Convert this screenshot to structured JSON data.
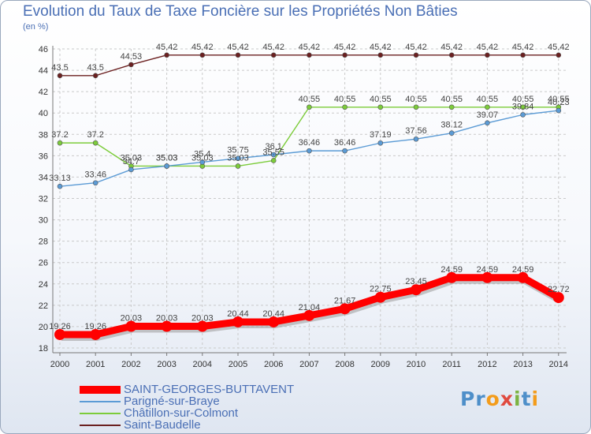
{
  "title": "Evolution du Taux de Taxe Foncière sur les Propriétés Non Bâties",
  "unit_label": "(en %)",
  "logo_text": "Proxiti",
  "chart_data": {
    "type": "line",
    "title": "Evolution du Taux de Taxe Foncière sur les Propriétés Non Bâties",
    "ylabel": "(en %)",
    "x": [
      "2000",
      "2001",
      "2002",
      "2003",
      "2004",
      "2005",
      "2006",
      "2007",
      "2008",
      "2009",
      "2010",
      "2011",
      "2012",
      "2013",
      "2014"
    ],
    "ylim": [
      18,
      46
    ],
    "yticks": [
      18,
      20,
      22,
      24,
      26,
      28,
      30,
      32,
      34,
      36,
      38,
      40,
      42,
      44,
      46
    ],
    "grid": true,
    "legend_position": "bottom-left",
    "series": [
      {
        "name": "SAINT-GEORGES-BUTTAVENT",
        "color": "#ff0000",
        "values": [
          19.26,
          19.26,
          20.03,
          20.03,
          20.03,
          20.44,
          20.44,
          21.04,
          21.67,
          22.75,
          23.45,
          24.59,
          24.59,
          24.59,
          22.72
        ],
        "labels": [
          "19.26",
          "19.26",
          "20.03",
          "20.03",
          "20.03",
          "20.44",
          "20.44",
          "21.04",
          "21.67",
          "22.75",
          "23.45",
          "24.59",
          "24.59",
          "24.59",
          "22.72"
        ]
      },
      {
        "name": "Parigné-sur-Braye",
        "color": "#5b9bd5",
        "values": [
          33.13,
          33.46,
          34.7,
          35.03,
          35.4,
          35.75,
          36.1,
          36.46,
          36.46,
          37.19,
          37.56,
          38.12,
          39.07,
          39.84,
          40.23
        ],
        "labels": [
          "33.13",
          "33.46",
          "34.7",
          "35.03",
          "35.4",
          "35.75",
          "36.1",
          "36.46",
          "36.46",
          "37.19",
          "37.56",
          "38.12",
          "39.07",
          "39.84",
          "40.23"
        ]
      },
      {
        "name": "Châtillon-sur-Colmont",
        "color": "#7ccc3a",
        "values": [
          37.2,
          37.2,
          35.03,
          35.03,
          35.03,
          35.03,
          35.55,
          40.55,
          40.55,
          40.55,
          40.55,
          40.55,
          40.55,
          40.55,
          40.55
        ],
        "labels": [
          "37.2",
          "37.2",
          "35.03",
          "35.03",
          "35.03",
          "35.03",
          "35.55",
          "40.55",
          "40.55",
          "40.55",
          "40.55",
          "40.55",
          "40.55",
          "40.55",
          "40.55"
        ]
      },
      {
        "name": "Saint-Baudelle",
        "color": "#6b2020",
        "values": [
          43.5,
          43.5,
          44.53,
          45.42,
          45.42,
          45.42,
          45.42,
          45.42,
          45.42,
          45.42,
          45.42,
          45.42,
          45.42,
          45.42,
          45.42
        ],
        "labels": [
          "43.5",
          "43.5",
          "44.53",
          "45.42",
          "45.42",
          "45.42",
          "45.42",
          "45.42",
          "45.42",
          "45.42",
          "45.42",
          "45.42",
          "45.42",
          "45.42",
          "45.42"
        ]
      }
    ]
  }
}
